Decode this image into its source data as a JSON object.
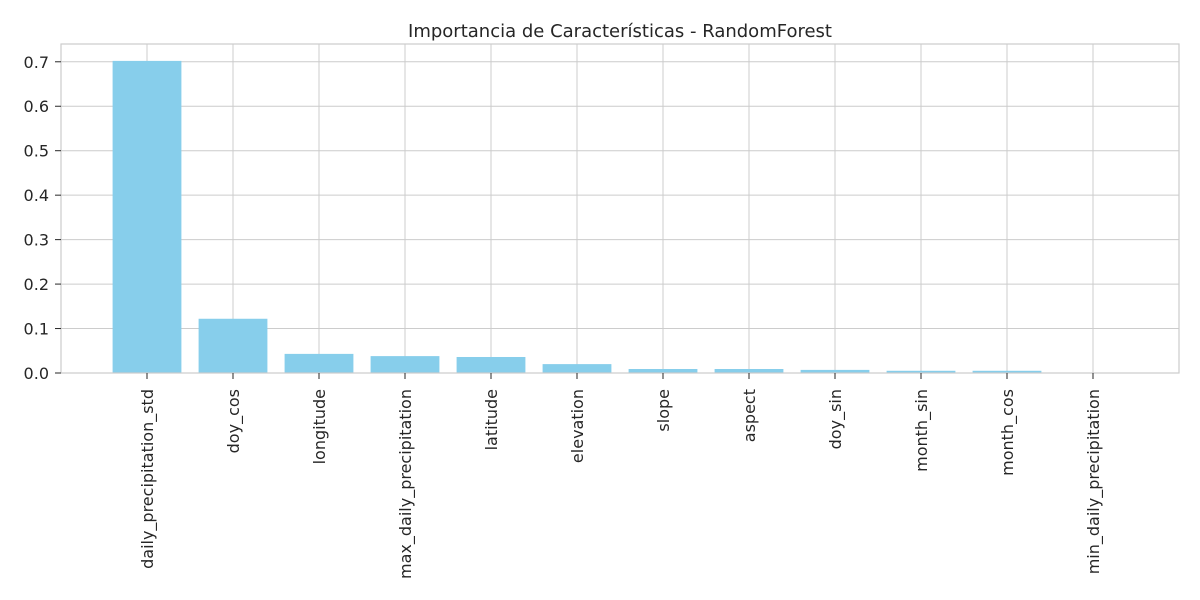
{
  "chart_data": {
    "type": "bar",
    "title": "Importancia de Características - RandomForest",
    "xlabel": "",
    "ylabel": "",
    "categories": [
      "daily_precipitation_std",
      "doy_cos",
      "longitude",
      "max_daily_precipitation",
      "latitude",
      "elevation",
      "slope",
      "aspect",
      "doy_sin",
      "month_sin",
      "month_cos",
      "min_daily_precipitation"
    ],
    "values": [
      0.702,
      0.122,
      0.043,
      0.038,
      0.036,
      0.02,
      0.009,
      0.009,
      0.007,
      0.005,
      0.005,
      0.0005
    ],
    "ylim": [
      0,
      0.74
    ],
    "yticks": [
      0.0,
      0.1,
      0.2,
      0.3,
      0.4,
      0.5,
      0.6,
      0.7
    ],
    "ytick_labels": [
      "0.0",
      "0.1",
      "0.2",
      "0.3",
      "0.4",
      "0.5",
      "0.6",
      "0.7"
    ],
    "grid": true,
    "bar_color": "#87CEEB",
    "grid_color": "#CCCCCC",
    "axis_color": "#CCCCCC",
    "text_color": "#262626"
  }
}
